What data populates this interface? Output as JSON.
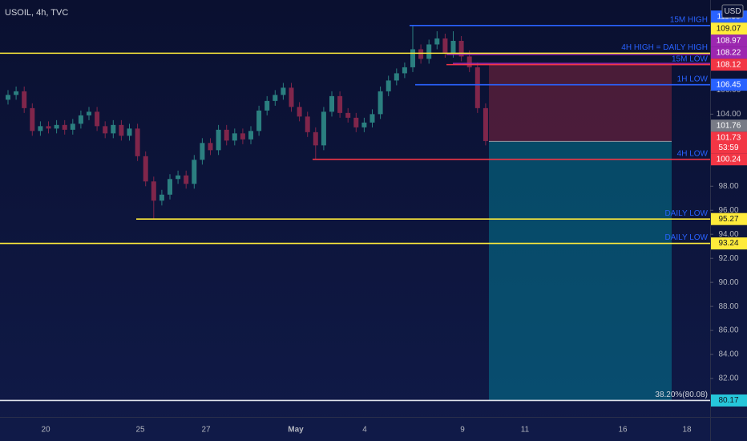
{
  "chart_data": {
    "type": "candlestick",
    "title": "USOIL, 4h, TVC",
    "currency": "USD",
    "ylim": [
      78.8,
      113.5
    ],
    "yticks": [
      {
        "value": 106,
        "label": "106.00"
      },
      {
        "value": 104,
        "label": "104.00"
      },
      {
        "value": 98,
        "label": "98.00"
      },
      {
        "value": 96,
        "label": "96.00"
      },
      {
        "value": 94,
        "label": "94.00"
      },
      {
        "value": 92,
        "label": "92.00"
      },
      {
        "value": 90,
        "label": "90.00"
      },
      {
        "value": 88,
        "label": "88.00"
      },
      {
        "value": 86,
        "label": "86.00"
      },
      {
        "value": 84,
        "label": "84.00"
      },
      {
        "value": 82,
        "label": "82.00"
      }
    ],
    "x_labels": [
      "20",
      "25",
      "27",
      "May",
      "4",
      "9",
      "11",
      "16",
      "18"
    ],
    "up_color": "#2b7f80",
    "down_color": "#80264b",
    "candles": [
      [
        105.2,
        106.0,
        104.8,
        105.6
      ],
      [
        105.6,
        106.3,
        105.2,
        105.9
      ],
      [
        105.9,
        106.3,
        104.1,
        104.5
      ],
      [
        104.5,
        104.9,
        102.2,
        102.6
      ],
      [
        102.6,
        103.4,
        102.2,
        103.0
      ],
      [
        103.0,
        103.4,
        102.4,
        102.8
      ],
      [
        102.8,
        103.5,
        102.4,
        103.1
      ],
      [
        103.1,
        103.5,
        102.3,
        102.7
      ],
      [
        102.7,
        103.6,
        102.3,
        103.2
      ],
      [
        103.2,
        104.3,
        102.8,
        103.9
      ],
      [
        103.9,
        104.6,
        103.5,
        104.2
      ],
      [
        104.2,
        104.6,
        102.6,
        103.0
      ],
      [
        103.0,
        103.4,
        102.0,
        102.4
      ],
      [
        102.4,
        103.5,
        102.0,
        103.1
      ],
      [
        103.1,
        103.5,
        101.8,
        102.2
      ],
      [
        102.2,
        103.2,
        101.8,
        102.8
      ],
      [
        102.8,
        103.2,
        100.1,
        100.5
      ],
      [
        100.5,
        100.9,
        98.0,
        98.4
      ],
      [
        98.4,
        98.8,
        95.27,
        96.8
      ],
      [
        96.8,
        97.7,
        96.4,
        97.3
      ],
      [
        97.3,
        99.0,
        96.9,
        98.6
      ],
      [
        98.6,
        99.3,
        98.2,
        98.9
      ],
      [
        98.9,
        99.3,
        97.8,
        98.2
      ],
      [
        98.2,
        100.6,
        97.8,
        100.2
      ],
      [
        100.2,
        102.0,
        99.8,
        101.6
      ],
      [
        101.6,
        102.0,
        100.6,
        101.0
      ],
      [
        101.0,
        103.1,
        100.6,
        102.7
      ],
      [
        102.7,
        103.1,
        101.4,
        101.8
      ],
      [
        101.8,
        102.8,
        101.4,
        102.4
      ],
      [
        102.4,
        102.8,
        101.5,
        101.9
      ],
      [
        101.9,
        103.0,
        101.5,
        102.6
      ],
      [
        102.6,
        104.7,
        102.2,
        104.3
      ],
      [
        104.3,
        105.5,
        103.9,
        105.1
      ],
      [
        105.1,
        106.0,
        104.7,
        105.6
      ],
      [
        105.6,
        106.6,
        105.2,
        106.2
      ],
      [
        106.2,
        106.6,
        104.2,
        104.6
      ],
      [
        104.6,
        105.0,
        103.4,
        103.8
      ],
      [
        103.8,
        104.2,
        102.1,
        102.5
      ],
      [
        102.5,
        102.9,
        100.24,
        101.4
      ],
      [
        101.4,
        104.6,
        101.0,
        104.2
      ],
      [
        104.2,
        105.9,
        103.8,
        105.5
      ],
      [
        105.5,
        105.9,
        103.7,
        104.1
      ],
      [
        104.1,
        104.5,
        103.3,
        103.7
      ],
      [
        103.7,
        104.1,
        102.5,
        102.9
      ],
      [
        102.9,
        103.7,
        102.5,
        103.3
      ],
      [
        103.3,
        104.4,
        102.9,
        104.0
      ],
      [
        104.0,
        106.3,
        103.6,
        105.9
      ],
      [
        105.9,
        107.2,
        105.5,
        106.8
      ],
      [
        106.8,
        107.8,
        106.4,
        107.4
      ],
      [
        107.4,
        108.3,
        107.0,
        107.9
      ],
      [
        107.9,
        111.38,
        107.5,
        109.4
      ],
      [
        109.4,
        109.8,
        108.2,
        108.6
      ],
      [
        108.6,
        110.2,
        108.2,
        109.8
      ],
      [
        109.8,
        110.9,
        109.4,
        110.3
      ],
      [
        110.3,
        110.7,
        108.7,
        109.1
      ],
      [
        109.1,
        110.9,
        108.7,
        110.1
      ],
      [
        110.1,
        110.5,
        108.4,
        108.8
      ],
      [
        108.8,
        109.3,
        107.5,
        107.9
      ],
      [
        107.9,
        108.3,
        104.1,
        104.5
      ],
      [
        104.5,
        104.9,
        101.4,
        101.76
      ]
    ],
    "levels": [
      {
        "price": 111.38,
        "color": "#2962ff",
        "text": "15M HIGH"
      },
      {
        "price": 108.97,
        "color": "#9c27b0"
      },
      {
        "price": 109.07,
        "color": "#ffeb3b",
        "text": "4H HIGH = DAILY HIGH"
      },
      {
        "price": 108.22,
        "color": "#9c27b0"
      },
      {
        "price": 108.12,
        "color": "#f23645",
        "text": "15M LOW"
      },
      {
        "price": 106.45,
        "color": "#2962ff",
        "text": "1H LOW"
      },
      {
        "price": 100.24,
        "color": "#f23645",
        "text": "4H LOW"
      },
      {
        "price": 95.27,
        "color": "#ffeb3b",
        "text": "DAILY LOW"
      },
      {
        "price": 93.24,
        "color": "#ffeb3b",
        "text": "DAILY LOW"
      },
      {
        "price": 80.17,
        "color": "#e0e3eb",
        "badge": "#26c6da",
        "text": "38.20%(80.08)"
      }
    ],
    "axis_badges": [
      {
        "value": 101.76,
        "color": "#787b86"
      },
      {
        "value": 101.73,
        "color": "#f23645",
        "countdown": "53:59"
      }
    ]
  }
}
